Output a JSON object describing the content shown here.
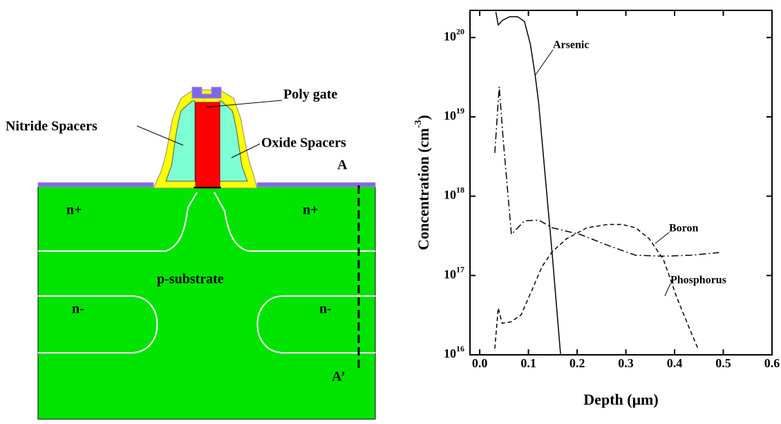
{
  "diagram": {
    "labels": {
      "poly_gate": "Poly gate",
      "nitride": "Nitride Spacers",
      "oxide": "Oxide Spacers",
      "a": "A",
      "a_prime": "A’",
      "n_plus_left": "n+",
      "n_plus_right": "n+",
      "substrate": "p-substrate",
      "n_minus_left": "n-",
      "n_minus_right": "n-"
    }
  },
  "chart_data": {
    "type": "line",
    "xlabel": "Depth (μm)",
    "ylabel": {
      "text": "Concentration (cm",
      "sup": "-3",
      "end": ")"
    },
    "xlim": [
      -0.02,
      0.6
    ],
    "ylim": [
      1e+16,
      2.2e+20
    ],
    "log_y": true,
    "xticks": [
      {
        "value": 0,
        "label": "0.0"
      },
      0.1,
      0.2,
      0.3,
      0.4,
      0.5,
      0.6
    ],
    "yticks": [
      {
        "value": 1e+16,
        "label": "10",
        "sup": "16"
      },
      {
        "value": 1e+17,
        "label": "10",
        "sup": "17"
      },
      {
        "value": 1e+18,
        "label": "10",
        "sup": "18"
      },
      {
        "value": 1e+19,
        "label": "10",
        "sup": "19"
      },
      {
        "value": 1e+20,
        "label": "10",
        "sup": "20"
      }
    ],
    "series": [
      {
        "name": "Arsenic",
        "color": "#000000",
        "style": "solid",
        "x": [
          0.033,
          0.038,
          0.047,
          0.061,
          0.078,
          0.092,
          0.104,
          0.114,
          0.121,
          0.135,
          0.149,
          0.166
        ],
        "values": [
          2.1e+20,
          1.44e+20,
          1.65e+20,
          1.83e+20,
          1.83e+20,
          1.59e+20,
          8.2e+19,
          3.3e+19,
          1.49e+19,
          1.62e+18,
          1.8e+17,
          1e+16
        ]
      },
      {
        "name": "Boron",
        "color": "#000000",
        "style": "dashdot",
        "x": [
          0.031,
          0.04,
          0.048,
          0.065,
          0.092,
          0.121,
          0.149,
          0.206,
          0.263,
          0.32,
          0.377,
          0.434,
          0.491
        ],
        "values": [
          3.5e+18,
          2.4e+19,
          5.4e+18,
          3.3e+17,
          4.9e+17,
          5e+17,
          4e+17,
          3.3e+17,
          2.4e+17,
          1.8e+17,
          1.75e+17,
          1.8e+17,
          1.95e+17
        ]
      },
      {
        "name": "Phosphorus",
        "color": "#000000",
        "style": "dash",
        "x": [
          0.031,
          0.038,
          0.046,
          0.064,
          0.085,
          0.107,
          0.128,
          0.149,
          0.178,
          0.22,
          0.263,
          0.292,
          0.32,
          0.348,
          0.377,
          0.405,
          0.434,
          0.448
        ],
        "values": [
          1.2e+16,
          3.9e+16,
          2.5e+16,
          2.6e+16,
          3.2e+16,
          6.5e+16,
          1.3e+17,
          2e+17,
          2.9e+17,
          4e+17,
          4.4e+17,
          4.4e+17,
          4e+17,
          2.9e+17,
          1.6e+17,
          5.2e+16,
          1.9e+16,
          1.2e+16
        ]
      }
    ]
  }
}
